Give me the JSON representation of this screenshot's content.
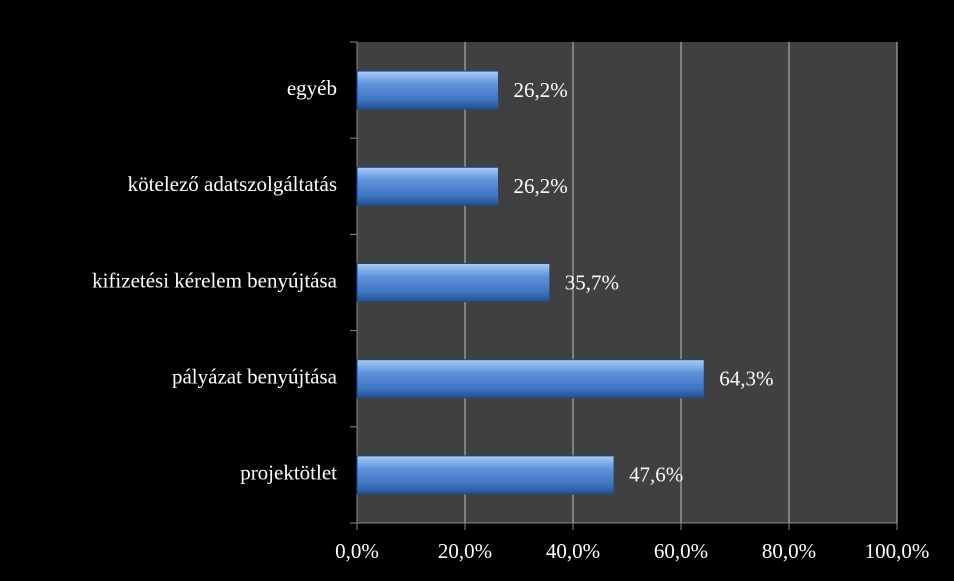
{
  "chart_data": {
    "type": "bar",
    "orientation": "horizontal",
    "categories": [
      "egyéb",
      "kötelező adatszolgáltatás",
      "kifizetési kérelem benyújtása",
      "pályázat benyújtása",
      "projektötlet"
    ],
    "values": [
      26.2,
      26.2,
      35.7,
      64.3,
      47.6
    ],
    "value_labels": [
      "26,2%",
      "26,2%",
      "35,7%",
      "64,3%",
      "47,6%"
    ],
    "color": "#4a7fc9",
    "xlim": [
      0,
      100
    ],
    "xticks": [
      {
        "value": 0,
        "label": "0,0%"
      },
      {
        "value": 20,
        "label": "20,0%"
      },
      {
        "value": 40,
        "label": "40,0%"
      },
      {
        "value": 60,
        "label": "60,0%"
      },
      {
        "value": 80,
        "label": "80,0%"
      },
      {
        "value": 100,
        "label": "100,0%"
      }
    ],
    "grid": true
  }
}
